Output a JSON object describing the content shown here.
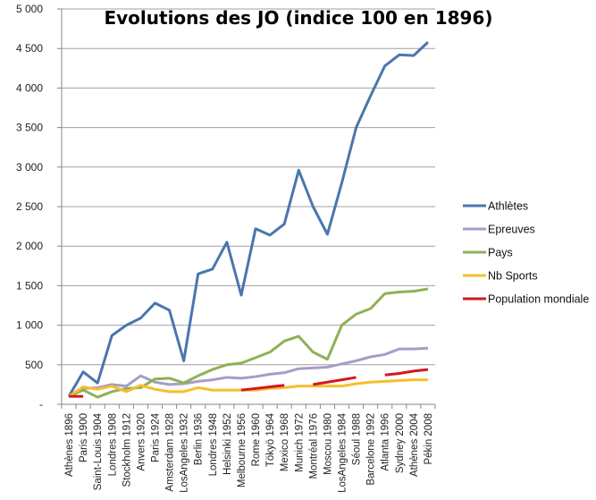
{
  "chart_data": {
    "type": "line",
    "title": "Evolutions des JO (indice 100 en 1896)",
    "xlabel": "",
    "ylabel": "",
    "ylim": [
      0,
      5000
    ],
    "yticks": [
      0,
      500,
      1000,
      1500,
      2000,
      2500,
      3000,
      3500,
      4000,
      4500,
      5000
    ],
    "ytick_labels": [
      "-",
      "500",
      "1 000",
      "1 500",
      "2 000",
      "2 500",
      "3 000",
      "3 500",
      "4 000",
      "4 500",
      "5 000"
    ],
    "grid": true,
    "legend_position": "right",
    "categories": [
      "Athènes 1896",
      "Paris 1900",
      "Saint-Louis 1904",
      "Londres 1908",
      "Stockholm 1912",
      "Anvers 1920",
      "Paris 1924",
      "Amsterdam 1928",
      "LosAngeles 1932",
      "Berlin 1936",
      "Londres 1948",
      "Helsinki 1952",
      "Melbourne 1956",
      "Rome 1960",
      "Tökyö 1964",
      "Mexico 1968",
      "Munich 1972",
      "Montréal 1976",
      "Moscou 1980",
      "LosAngeles 1984",
      "Séoul 1988",
      "Barcelone 1992",
      "Atlanta 1996",
      "Sydney 2000",
      "Athènes 2004",
      "Pékin 2008"
    ],
    "series": [
      {
        "name": "Athlètes",
        "color": "#4a76ad",
        "values": [
          100,
          410,
          270,
          870,
          1000,
          1090,
          1280,
          1190,
          550,
          1650,
          1710,
          2050,
          1380,
          2220,
          2140,
          2280,
          2960,
          2500,
          2150,
          2800,
          3500,
          3900,
          4280,
          4420,
          4410,
          4580
        ]
      },
      {
        "name": "Epreuves",
        "color": "#a99bc6",
        "values": [
          100,
          200,
          210,
          250,
          230,
          360,
          280,
          250,
          260,
          290,
          310,
          340,
          330,
          350,
          380,
          400,
          450,
          460,
          470,
          510,
          550,
          600,
          630,
          700,
          700,
          710
        ]
      },
      {
        "name": "Pays",
        "color": "#8fb155",
        "values": [
          100,
          180,
          90,
          160,
          200,
          210,
          320,
          330,
          270,
          360,
          440,
          500,
          520,
          590,
          660,
          800,
          860,
          660,
          570,
          1000,
          1140,
          1210,
          1400,
          1420,
          1430,
          1460
        ]
      },
      {
        "name": "Nb Sports",
        "color": "#f5be2c",
        "values": [
          100,
          220,
          190,
          230,
          160,
          240,
          190,
          160,
          160,
          210,
          180,
          180,
          180,
          180,
          200,
          210,
          230,
          230,
          230,
          230,
          260,
          280,
          290,
          300,
          310,
          310
        ]
      },
      {
        "name": "Population mondiale",
        "color": "#d3181f",
        "values": [
          100,
          100,
          null,
          null,
          null,
          null,
          null,
          null,
          null,
          null,
          null,
          null,
          180,
          200,
          220,
          240,
          null,
          250,
          280,
          310,
          340,
          null,
          370,
          390,
          420,
          440
        ]
      }
    ]
  }
}
